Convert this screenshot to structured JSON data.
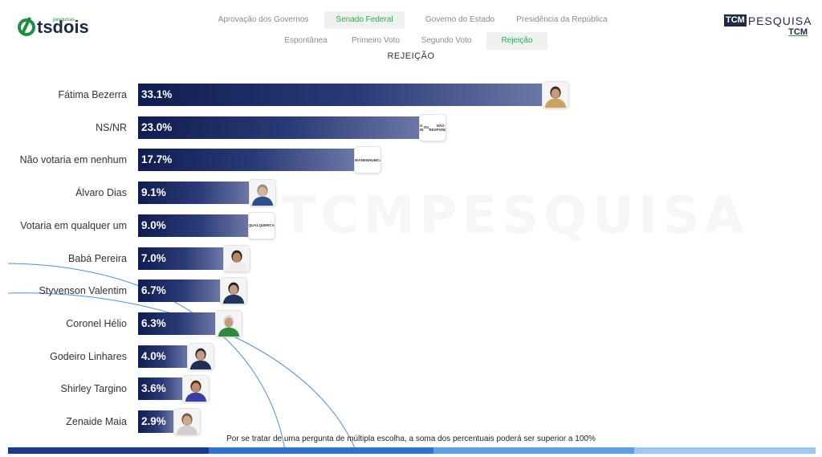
{
  "brand": {
    "left_logo": "tsdois",
    "left_logo_sub": "pesquisas",
    "right_logo_badge": "TCM",
    "right_logo_text": "PESQUISA",
    "right_logo_sub": "TCM"
  },
  "nav": {
    "tabs_row1": [
      {
        "label": "Aprovação dos Governos",
        "active": false
      },
      {
        "label": "Senado Federal",
        "active": true
      },
      {
        "label": "Governo do Estado",
        "active": false
      },
      {
        "label": "Presidência da República",
        "active": false
      }
    ],
    "tabs_row2": [
      {
        "label": "Espontânea",
        "active": false
      },
      {
        "label": "Primeiro Voto",
        "active": false
      },
      {
        "label": "Segundo Voto",
        "active": false
      },
      {
        "label": "Rejeição",
        "active": true
      }
    ]
  },
  "watermark": "TCMPESQUISA",
  "chart_data": {
    "type": "bar",
    "orientation": "horizontal",
    "title": "REJEIÇÃO",
    "xlabel": "",
    "ylabel": "",
    "xlim": [
      0,
      33.1
    ],
    "grid": false,
    "legend": "none",
    "categories": [
      "Fátima Bezerra",
      "NS/NR",
      "Não votaria em nenhum",
      "Álvaro Dias",
      "Votaria em qualquer um",
      "Babá Pereira",
      "Styvenson Valentim",
      "Coronel Hélio",
      "Godeiro Linhares",
      "Shirley Targino",
      "Zenaide Maia"
    ],
    "values": [
      33.1,
      23.0,
      17.7,
      9.1,
      9.0,
      7.0,
      6.7,
      6.3,
      4.0,
      3.6,
      2.9
    ],
    "value_labels": [
      "33.1%",
      "23.0%",
      "17.7%",
      "9.1%",
      "9.0%",
      "7.0%",
      "6.7%",
      "6.3%",
      "4.0%",
      "3.6%",
      "2.9%"
    ],
    "bar_color_start": "#101d52",
    "bar_color_end": "#6b77a6",
    "thumbnails": [
      {
        "kind": "photo",
        "skin": "#c99a7a",
        "hair": "#3a2a20",
        "shirt": "#c9a45a"
      },
      {
        "kind": "text",
        "lines": [
          "NÃO SABE",
          "OU",
          "NÃO RESPONDEU"
        ]
      },
      {
        "kind": "text",
        "lines": [
          "NÃO",
          "VOTARIA",
          "NENHUM",
          "CANDIDATO"
        ]
      },
      {
        "kind": "photo",
        "skin": "#d8b39a",
        "hair": "#8a8a8a",
        "shirt": "#2f4f8a"
      },
      {
        "kind": "text",
        "lines": [
          "VOTARIA",
          "QUALQUER",
          "CANDIDATO"
        ]
      },
      {
        "kind": "photo",
        "skin": "#b98566",
        "hair": "#222222",
        "shirt": "#eeeeee"
      },
      {
        "kind": "photo",
        "skin": "#c79b7d",
        "hair": "#1c1c1c",
        "shirt": "#22345e"
      },
      {
        "kind": "photo",
        "skin": "#c99a7a",
        "hair": "#d9d9d9",
        "shirt": "#2e8b3d"
      },
      {
        "kind": "photo",
        "skin": "#c59a80",
        "hair": "#2a2a2a",
        "shirt": "#1f2f55"
      },
      {
        "kind": "photo",
        "skin": "#c48a6a",
        "hair": "#4a2a1a",
        "shirt": "#3a3fa0"
      },
      {
        "kind": "photo",
        "skin": "#d1a78c",
        "hair": "#6a5a4a",
        "shirt": "#cfcfcf"
      }
    ],
    "footnote": "Por se tratar de uma pergunta de múltipla escolha, a soma dos percentuais poderá ser superior a 100%"
  },
  "colors": {
    "active_tab_text": "#34a853",
    "active_tab_bg": "#eef2ee",
    "bottom_stripe": [
      "#1b3a8c",
      "#2f72d6",
      "#5aa0e8",
      "#9cc8f2"
    ]
  }
}
